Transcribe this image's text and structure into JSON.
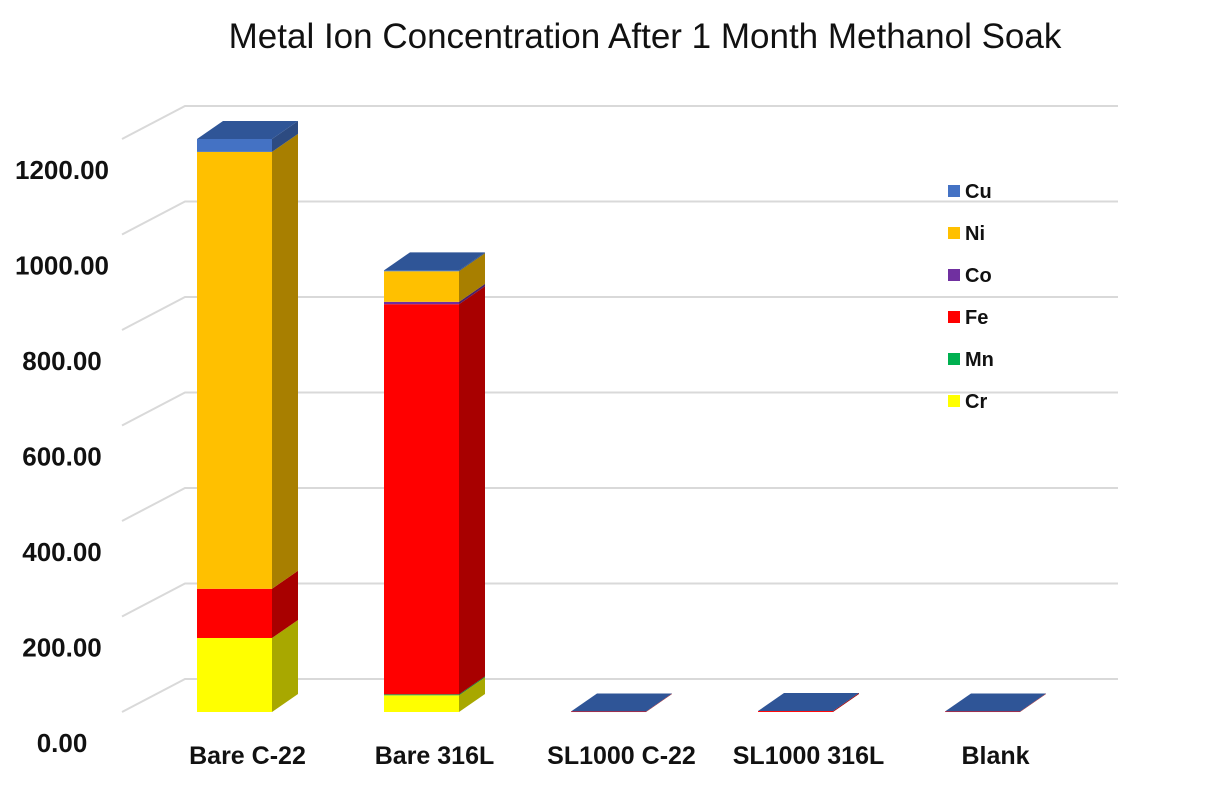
{
  "chart_data": {
    "type": "bar",
    "stacked": true,
    "three_d": true,
    "title": "Metal Ion Concentration After 1 Month Methanol Soak",
    "xlabel": "",
    "ylabel": "",
    "ylim": [
      0,
      1200
    ],
    "yticks": [
      "0.00",
      "200.00",
      "400.00",
      "600.00",
      "800.00",
      "1000.00",
      "1200.00"
    ],
    "grid": true,
    "legend_position": "right",
    "categories": [
      "Bare C-22",
      "Bare 316L",
      "SL1000 C-22",
      "SL1000 316L",
      "Blank"
    ],
    "series": [
      {
        "name": "Cr",
        "color": "#ffff00",
        "values": [
          155,
          35,
          0,
          0,
          0
        ]
      },
      {
        "name": "Mn",
        "color": "#00b050",
        "values": [
          0,
          2,
          0,
          0,
          0
        ]
      },
      {
        "name": "Fe",
        "color": "#ff0000",
        "values": [
          103,
          817,
          1,
          2,
          1
        ]
      },
      {
        "name": "Co",
        "color": "#7030a0",
        "values": [
          0,
          5,
          0,
          0,
          0
        ]
      },
      {
        "name": "Ni",
        "color": "#ffc000",
        "values": [
          915,
          64,
          0,
          0,
          0
        ]
      },
      {
        "name": "Cu",
        "color": "#4472c4",
        "values": [
          27,
          2,
          0,
          0,
          0
        ]
      }
    ],
    "legend_order": [
      "Cu",
      "Ni",
      "Co",
      "Fe",
      "Mn",
      "Cr"
    ]
  }
}
